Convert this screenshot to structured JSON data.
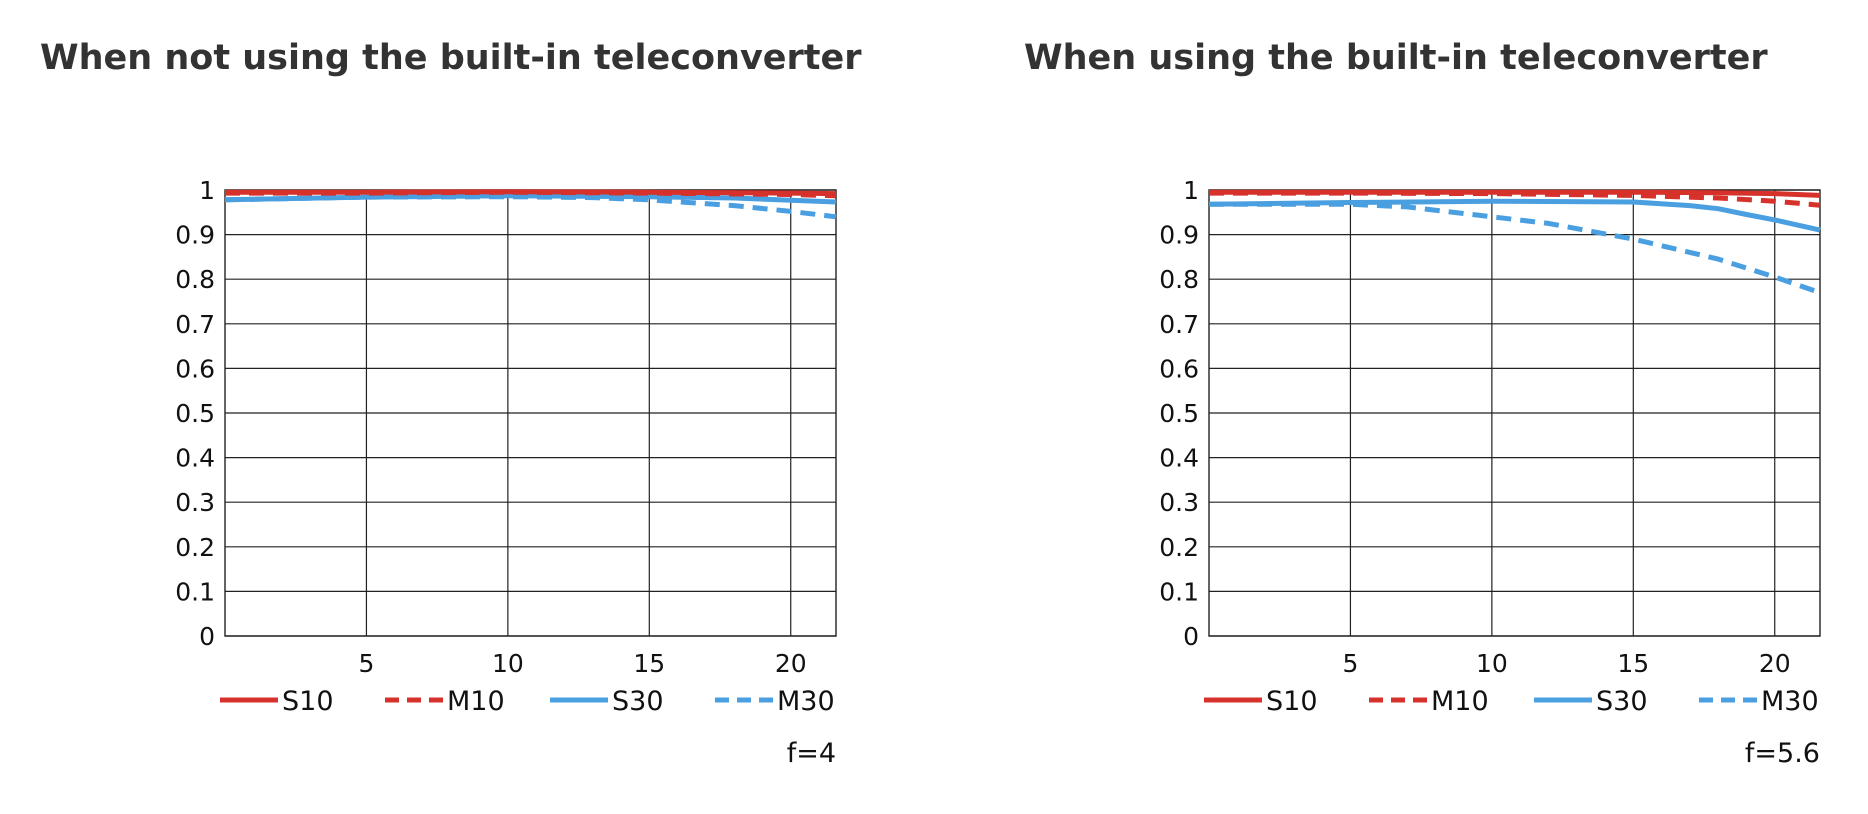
{
  "chart_data": [
    {
      "type": "line",
      "title": "When not using the built-in teleconverter",
      "note": "f=4",
      "xlim": [
        0,
        21.6
      ],
      "ylim": [
        0,
        1
      ],
      "x_ticks": [
        "5",
        "10",
        "15",
        "20"
      ],
      "y_ticks": [
        "0",
        "0.1",
        "0.2",
        "0.3",
        "0.4",
        "0.5",
        "0.6",
        "0.7",
        "0.8",
        "0.9",
        "1"
      ],
      "grid": true,
      "legend_position": "bottom",
      "series": [
        {
          "name": "S10",
          "color": "#d7312c",
          "dash": false,
          "points": [
            [
              0,
              0.995
            ],
            [
              5,
              0.995
            ],
            [
              10,
              0.996
            ],
            [
              15,
              0.995
            ],
            [
              20,
              0.993
            ],
            [
              21.6,
              0.992
            ]
          ]
        },
        {
          "name": "M10",
          "color": "#d7312c",
          "dash": true,
          "points": [
            [
              0,
              0.993
            ],
            [
              5,
              0.993
            ],
            [
              10,
              0.995
            ],
            [
              15,
              0.993
            ],
            [
              20,
              0.99
            ],
            [
              21.6,
              0.987
            ]
          ]
        },
        {
          "name": "S30",
          "color": "#4a9fe0",
          "dash": false,
          "points": [
            [
              0,
              0.978
            ],
            [
              5,
              0.984
            ],
            [
              10,
              0.987
            ],
            [
              15,
              0.985
            ],
            [
              18,
              0.982
            ],
            [
              20,
              0.977
            ],
            [
              21.6,
              0.973
            ]
          ]
        },
        {
          "name": "M30",
          "color": "#4a9fe0",
          "dash": true,
          "points": [
            [
              0,
              0.978
            ],
            [
              5,
              0.984
            ],
            [
              10,
              0.985
            ],
            [
              13,
              0.983
            ],
            [
              15,
              0.978
            ],
            [
              18,
              0.965
            ],
            [
              20,
              0.952
            ],
            [
              21.6,
              0.94
            ]
          ]
        }
      ]
    },
    {
      "type": "line",
      "title": "When using the built-in teleconverter",
      "note": "f=5.6",
      "xlim": [
        0,
        21.6
      ],
      "ylim": [
        0,
        1
      ],
      "x_ticks": [
        "5",
        "10",
        "15",
        "20"
      ],
      "y_ticks": [
        "0",
        "0.1",
        "0.2",
        "0.3",
        "0.4",
        "0.5",
        "0.6",
        "0.7",
        "0.8",
        "0.9",
        "1"
      ],
      "grid": true,
      "legend_position": "bottom",
      "series": [
        {
          "name": "S10",
          "color": "#d7312c",
          "dash": false,
          "points": [
            [
              0,
              0.995
            ],
            [
              5,
              0.995
            ],
            [
              10,
              0.995
            ],
            [
              15,
              0.995
            ],
            [
              18,
              0.994
            ],
            [
              20,
              0.992
            ],
            [
              21.6,
              0.988
            ]
          ]
        },
        {
          "name": "M10",
          "color": "#d7312c",
          "dash": true,
          "points": [
            [
              0,
              0.993
            ],
            [
              5,
              0.993
            ],
            [
              10,
              0.992
            ],
            [
              15,
              0.988
            ],
            [
              18,
              0.982
            ],
            [
              20,
              0.975
            ],
            [
              21.6,
              0.966
            ]
          ]
        },
        {
          "name": "S30",
          "color": "#4a9fe0",
          "dash": false,
          "points": [
            [
              0,
              0.968
            ],
            [
              5,
              0.972
            ],
            [
              10,
              0.975
            ],
            [
              15,
              0.973
            ],
            [
              17,
              0.965
            ],
            [
              18,
              0.958
            ],
            [
              19,
              0.945
            ],
            [
              20,
              0.933
            ],
            [
              21.6,
              0.91
            ]
          ]
        },
        {
          "name": "M30",
          "color": "#4a9fe0",
          "dash": true,
          "points": [
            [
              0,
              0.968
            ],
            [
              5,
              0.968
            ],
            [
              7,
              0.962
            ],
            [
              10,
              0.94
            ],
            [
              12,
              0.925
            ],
            [
              15,
              0.89
            ],
            [
              17,
              0.86
            ],
            [
              18,
              0.845
            ],
            [
              20,
              0.805
            ],
            [
              21.6,
              0.77
            ]
          ]
        }
      ]
    }
  ]
}
